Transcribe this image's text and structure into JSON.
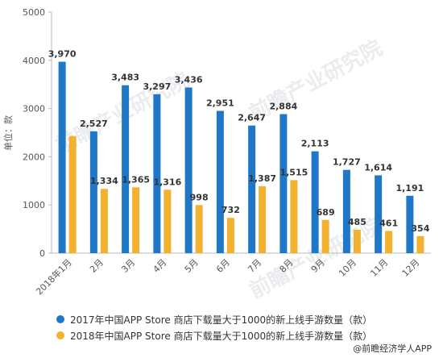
{
  "chart_data": {
    "type": "bar",
    "categories": [
      "2018年1月",
      "2月",
      "3月",
      "4月",
      "5月",
      "6月",
      "7月",
      "8月",
      "9月",
      "10月",
      "11月",
      "12月"
    ],
    "series": [
      {
        "name": "2017年中国APP Store 商店下载量大于1000的新上线手游数量（款）",
        "color": "#1f77c8",
        "values": [
          3970,
          2527,
          3483,
          3297,
          3436,
          2951,
          2647,
          2884,
          2113,
          1727,
          1614,
          1191
        ],
        "labels": [
          "3,970",
          "2,527",
          "3,483",
          "3,297",
          "3,436",
          "2,951",
          "2,647",
          "2,884",
          "2,113",
          "1,727",
          "1,614",
          "1,191"
        ]
      },
      {
        "name": "2018年中国APP Store 商店下载量大于1000的新上线手游数量（款）",
        "color": "#f2b12e",
        "values": [
          2430,
          1334,
          1365,
          1316,
          998,
          732,
          1387,
          1515,
          689,
          485,
          461,
          354
        ],
        "labels": [
          "",
          "1,334",
          "1,365",
          "1,316",
          "998",
          "732",
          "1,387",
          "1,515",
          "689",
          "485",
          "461",
          "354"
        ]
      }
    ],
    "ylabel": "单位：款",
    "ylim": [
      0,
      5000
    ],
    "yticks": [
      0,
      1000,
      2000,
      3000,
      4000,
      5000
    ],
    "grid": false,
    "legend_position": "bottom-left"
  },
  "source": "@前瞻经济学人APP",
  "watermark": "前瞻产业研究院"
}
